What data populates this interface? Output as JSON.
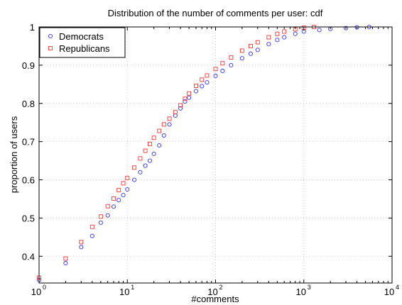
{
  "chart_data": {
    "type": "scatter",
    "title": "Distribution of the number of comments per user: cdf",
    "xlabel": "#comments",
    "ylabel": "proportion of users",
    "xscale": "log",
    "xlim": [
      1,
      10000
    ],
    "ylim": [
      0.33,
      1.0
    ],
    "x_ticks": [
      {
        "base": "10",
        "exp": "0"
      },
      {
        "base": "10",
        "exp": "1"
      },
      {
        "base": "10",
        "exp": "2"
      },
      {
        "base": "10",
        "exp": "3"
      },
      {
        "base": "10",
        "exp": "4"
      }
    ],
    "y_ticks": [
      "0.4",
      "0.5",
      "0.6",
      "0.7",
      "0.8",
      "0.9",
      "1"
    ],
    "grid": true,
    "legend_position": "top-left",
    "series": [
      {
        "name": "Democrats",
        "marker": "circle",
        "color": "#3333ff",
        "x": [
          1,
          2,
          3,
          4,
          5,
          6,
          7,
          8,
          9,
          10,
          12,
          14,
          16,
          18,
          20,
          23,
          26,
          30,
          35,
          40,
          45,
          50,
          60,
          70,
          80,
          100,
          120,
          150,
          200,
          250,
          300,
          400,
          500,
          600,
          800,
          1000,
          1500,
          2000,
          3000,
          4000,
          5500
        ],
        "y": [
          0.338,
          0.382,
          0.424,
          0.453,
          0.488,
          0.507,
          0.53,
          0.547,
          0.56,
          0.575,
          0.6,
          0.62,
          0.637,
          0.65,
          0.668,
          0.69,
          0.716,
          0.745,
          0.768,
          0.787,
          0.805,
          0.815,
          0.832,
          0.845,
          0.855,
          0.872,
          0.885,
          0.9,
          0.918,
          0.93,
          0.94,
          0.955,
          0.966,
          0.973,
          0.982,
          0.988,
          0.992,
          0.995,
          0.997,
          0.999,
          1.0
        ]
      },
      {
        "name": "Republicans",
        "marker": "square",
        "color": "#ff3333",
        "x": [
          1,
          2,
          3,
          4,
          5,
          6,
          7,
          8,
          9,
          10,
          12,
          14,
          16,
          18,
          20,
          23,
          26,
          30,
          35,
          40,
          45,
          50,
          60,
          70,
          80,
          100,
          120,
          150,
          200,
          250,
          300,
          400,
          500,
          600,
          800,
          1000,
          1300
        ],
        "y": [
          0.344,
          0.394,
          0.437,
          0.477,
          0.504,
          0.531,
          0.551,
          0.573,
          0.591,
          0.605,
          0.632,
          0.656,
          0.676,
          0.694,
          0.71,
          0.728,
          0.745,
          0.76,
          0.777,
          0.795,
          0.812,
          0.826,
          0.846,
          0.862,
          0.873,
          0.89,
          0.905,
          0.92,
          0.938,
          0.95,
          0.96,
          0.973,
          0.982,
          0.988,
          0.994,
          0.998,
          1.0
        ]
      }
    ]
  }
}
